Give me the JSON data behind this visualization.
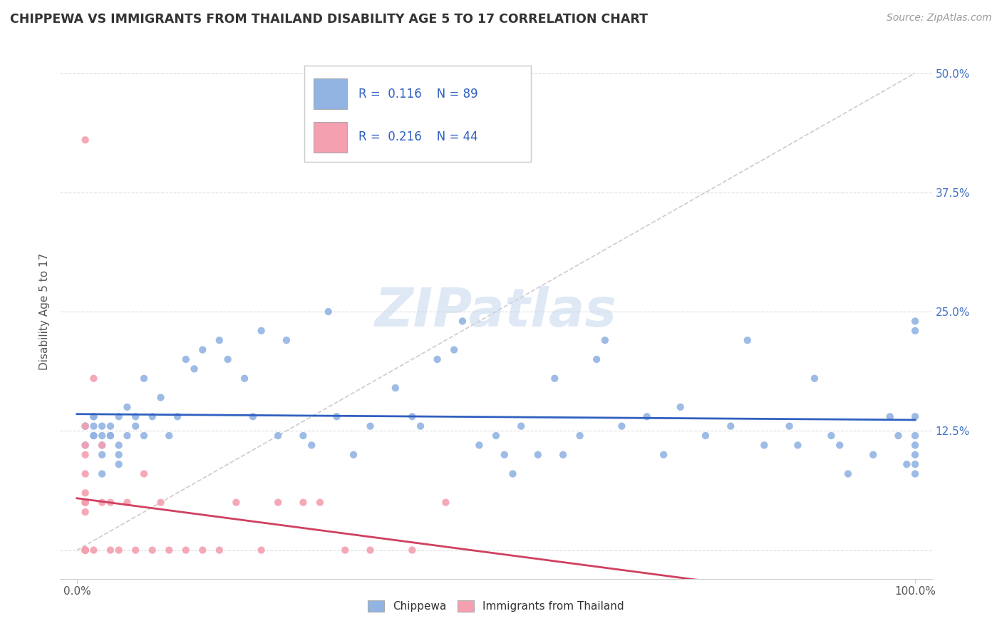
{
  "title": "CHIPPEWA VS IMMIGRANTS FROM THAILAND DISABILITY AGE 5 TO 17 CORRELATION CHART",
  "source": "Source: ZipAtlas.com",
  "ylabel": "Disability Age 5 to 17",
  "xlim": [
    -2,
    102
  ],
  "ylim": [
    -3,
    53
  ],
  "yticks": [
    0,
    12.5,
    25.0,
    37.5,
    50.0
  ],
  "xticks": [
    0,
    100
  ],
  "xtick_labels": [
    "0.0%",
    "100.0%"
  ],
  "ytick_labels": [
    "",
    "12.5%",
    "25.0%",
    "37.5%",
    "50.0%"
  ],
  "chippewa_color": "#92b4e3",
  "thailand_color": "#f4a0b0",
  "chippewa_line_color": "#3060c0",
  "thailand_line_color": "#d04060",
  "ref_line_color": "#cccccc",
  "R_chippewa": 0.116,
  "N_chippewa": 89,
  "R_thailand": 0.216,
  "N_thailand": 44,
  "watermark": "ZIPatlas",
  "legend_label_chippewa": "Chippewa",
  "legend_label_thailand": "Immigrants from Thailand",
  "chippewa_x": [
    1,
    1,
    1,
    2,
    2,
    2,
    2,
    2,
    3,
    3,
    3,
    3,
    3,
    4,
    4,
    4,
    5,
    5,
    5,
    5,
    6,
    6,
    7,
    7,
    8,
    8,
    9,
    10,
    11,
    12,
    13,
    14,
    15,
    17,
    18,
    20,
    21,
    22,
    24,
    25,
    27,
    28,
    30,
    31,
    33,
    35,
    38,
    40,
    41,
    43,
    45,
    46,
    48,
    50,
    51,
    52,
    53,
    55,
    57,
    58,
    60,
    62,
    63,
    65,
    68,
    70,
    72,
    75,
    78,
    80,
    82,
    85,
    86,
    88,
    90,
    91,
    92,
    95,
    97,
    98,
    99,
    100,
    100,
    100,
    100,
    100,
    100,
    100,
    100
  ],
  "chippewa_y": [
    13,
    13,
    11,
    12,
    14,
    12,
    14,
    13,
    12,
    13,
    11,
    10,
    8,
    12,
    13,
    12,
    11,
    10,
    14,
    9,
    15,
    12,
    14,
    13,
    18,
    12,
    14,
    16,
    12,
    14,
    20,
    19,
    21,
    22,
    20,
    18,
    14,
    23,
    12,
    22,
    12,
    11,
    25,
    14,
    10,
    13,
    17,
    14,
    13,
    20,
    21,
    24,
    11,
    12,
    10,
    8,
    13,
    10,
    18,
    10,
    12,
    20,
    22,
    13,
    14,
    10,
    15,
    12,
    13,
    22,
    11,
    13,
    11,
    18,
    12,
    11,
    8,
    10,
    14,
    12,
    9,
    10,
    24,
    9,
    8,
    12,
    11,
    14,
    23
  ],
  "thailand_x": [
    1,
    1,
    1,
    1,
    1,
    1,
    1,
    1,
    1,
    1,
    1,
    1,
    1,
    1,
    1,
    1,
    1,
    1,
    1,
    2,
    2,
    3,
    3,
    4,
    4,
    5,
    6,
    7,
    8,
    9,
    10,
    11,
    13,
    15,
    17,
    19,
    22,
    24,
    27,
    29,
    32,
    35,
    40,
    44
  ],
  "thailand_y": [
    0,
    0,
    0,
    0,
    0,
    0,
    0,
    0,
    0,
    4,
    5,
    5,
    5,
    6,
    8,
    10,
    11,
    13,
    43,
    0,
    18,
    5,
    11,
    0,
    5,
    0,
    5,
    0,
    8,
    0,
    5,
    0,
    0,
    0,
    0,
    5,
    0,
    5,
    5,
    5,
    0,
    0,
    0,
    5
  ]
}
